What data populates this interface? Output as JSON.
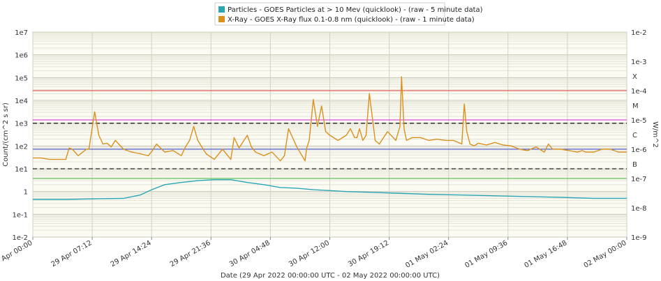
{
  "chart_data": {
    "type": "line",
    "legend": {
      "placement": "top-center",
      "entries": [
        {
          "label": "Particles - GOES Particles at > 10 Mev (quicklook) -  (raw - 5 minute data)",
          "color": "#2aa5b5"
        },
        {
          "label": "X-Ray - GOES X-Ray flux 0.1-0.8 nm (quicklook) -  (raw - 1 minute data)",
          "color": "#d9901f"
        }
      ]
    },
    "xlabel": "Date (29 Apr 2022 00:00:00 UTC - 02 May 2022 00:00:00 UTC)",
    "ylabel_left": "Count/(cm^2 s sr)",
    "ylabel_right": "W/m^2",
    "x_range_hours": [
      0,
      72
    ],
    "x_tick_hours": [
      0,
      7.2,
      14.4,
      21.6,
      28.8,
      36,
      43.2,
      50.4,
      57.6,
      64.8,
      72
    ],
    "x_tick_labels": [
      "29 Apr 00:00",
      "29 Apr 07:12",
      "29 Apr 14:24",
      "29 Apr 21:36",
      "30 Apr 04:48",
      "30 Apr 12:00",
      "30 Apr 19:12",
      "01 May 02:24",
      "01 May 09:36",
      "01 May 16:48",
      "02 May 00:00"
    ],
    "y_left": {
      "scale": "log",
      "range": [
        0.01,
        10000000
      ],
      "ticks": [
        "1e-2",
        "1e-1",
        "1",
        "1e1",
        "1e2",
        "1e3",
        "1e4",
        "1e5",
        "1e6",
        "1e7"
      ]
    },
    "y_right": {
      "scale": "log",
      "range": [
        1e-09,
        0.01
      ],
      "ticks": [
        "1e-9",
        "1e-8",
        "1e-7",
        "1e-6",
        "1e-5",
        "1e-4",
        "1e-3",
        "1e-2"
      ]
    },
    "flare_classes": [
      {
        "label": "B",
        "value": 1e-07
      },
      {
        "label": "C",
        "value": 1e-06
      },
      {
        "label": "M",
        "value": 1e-05
      },
      {
        "label": "X",
        "value": 0.0001
      }
    ],
    "threshold_lines": [
      {
        "axis": "right",
        "value": 0.0001,
        "color": "#e03030",
        "style": "solid"
      },
      {
        "axis": "right",
        "value": 1e-05,
        "color": "#d020d0",
        "style": "solid"
      },
      {
        "axis": "right",
        "value": 1e-06,
        "color": "#3040d0",
        "style": "solid"
      },
      {
        "axis": "right",
        "value": 1e-07,
        "color": "#40c040",
        "style": "solid"
      },
      {
        "axis": "left",
        "value": 1000,
        "color": "#222222",
        "style": "dashed"
      },
      {
        "axis": "left",
        "value": 10,
        "color": "#222222",
        "style": "dashed"
      }
    ],
    "grid": true,
    "series": [
      {
        "name": "X-Ray - GOES X-Ray flux 0.1-0.8 nm (quicklook)",
        "axis": "right",
        "color": "#d9901f",
        "x_hours": [
          0,
          1,
          2,
          3,
          4,
          4.4,
          4.8,
          5.5,
          6.5,
          6.8,
          7.5,
          8,
          8.5,
          9,
          9.5,
          10,
          11,
          12,
          13,
          14,
          14.5,
          15,
          16,
          17,
          18,
          18.5,
          19,
          19.5,
          20,
          21,
          22,
          23,
          24,
          24.4,
          25,
          26,
          26.5,
          27,
          28,
          29,
          30,
          30.5,
          31,
          32,
          33,
          33.2,
          33.5,
          34,
          34.5,
          35,
          35.5,
          36,
          37,
          38,
          38.5,
          39,
          39.3,
          39.6,
          40,
          40.4,
          40.8,
          41.5,
          42,
          43,
          44,
          44.5,
          44.7,
          45,
          45.3,
          46,
          47,
          48,
          49,
          50,
          51,
          52,
          52.3,
          52.6,
          53,
          53.5,
          54,
          55,
          56,
          57,
          58,
          59,
          60,
          61,
          62,
          62.5,
          63,
          64,
          65,
          66,
          66.6,
          67,
          68,
          69,
          70,
          71,
          72
        ],
        "y": [
          5e-07,
          5e-07,
          4.5e-07,
          4.5e-07,
          4.5e-07,
          1.1e-06,
          1e-06,
          6e-07,
          1e-06,
          1e-06,
          1.9e-05,
          3e-06,
          1.5e-06,
          1.6e-06,
          1.2e-06,
          2e-06,
          1e-06,
          8e-07,
          7e-07,
          6e-07,
          9e-07,
          1.5e-06,
          8e-07,
          9e-07,
          6e-07,
          1.2e-06,
          2e-06,
          6e-06,
          2e-06,
          7e-07,
          4.5e-07,
          1e-06,
          4.5e-07,
          2.5e-06,
          1.1e-06,
          3e-06,
          1.2e-06,
          8e-07,
          6e-07,
          8e-07,
          4e-07,
          6e-07,
          5e-06,
          1.2e-06,
          4e-07,
          1.1e-06,
          2e-06,
          5e-05,
          6e-06,
          3e-05,
          4e-06,
          3e-06,
          2e-06,
          3e-06,
          5e-06,
          2.5e-06,
          2.5e-06,
          5e-06,
          2e-06,
          3e-06,
          8e-05,
          2e-06,
          1.5e-06,
          4e-06,
          2e-06,
          6e-06,
          0.0003,
          5e-06,
          2e-06,
          2.5e-06,
          2.5e-06,
          2e-06,
          2.2e-06,
          2e-06,
          2e-06,
          1.5e-06,
          3.5e-05,
          4e-06,
          1.5e-06,
          1.3e-06,
          1.6e-06,
          1.4e-06,
          1.7e-06,
          1.4e-06,
          1.3e-06,
          1e-06,
          9e-07,
          1.2e-06,
          8e-07,
          1.5e-06,
          1e-06,
          1e-06,
          9e-07,
          8e-07,
          9e-07,
          8e-07,
          8e-07,
          1e-06,
          1e-06,
          8e-07,
          8e-07
        ]
      },
      {
        "name": "Particles - GOES Particles at > 10 Mev (quicklook)",
        "axis": "left",
        "color": "#2aa5b5",
        "x_hours": [
          0,
          4,
          8,
          11,
          13,
          14.4,
          16,
          18,
          20,
          22,
          24,
          26,
          28,
          30,
          32,
          34,
          36,
          38,
          40,
          44,
          48,
          52,
          56,
          60,
          64,
          68,
          72
        ],
        "y": [
          0.45,
          0.45,
          0.48,
          0.5,
          0.7,
          1.2,
          2,
          2.5,
          3,
          3.3,
          3.3,
          2.5,
          2,
          1.5,
          1.4,
          1.2,
          1.1,
          1.0,
          0.95,
          0.85,
          0.75,
          0.7,
          0.65,
          0.6,
          0.55,
          0.5,
          0.5
        ]
      }
    ]
  }
}
